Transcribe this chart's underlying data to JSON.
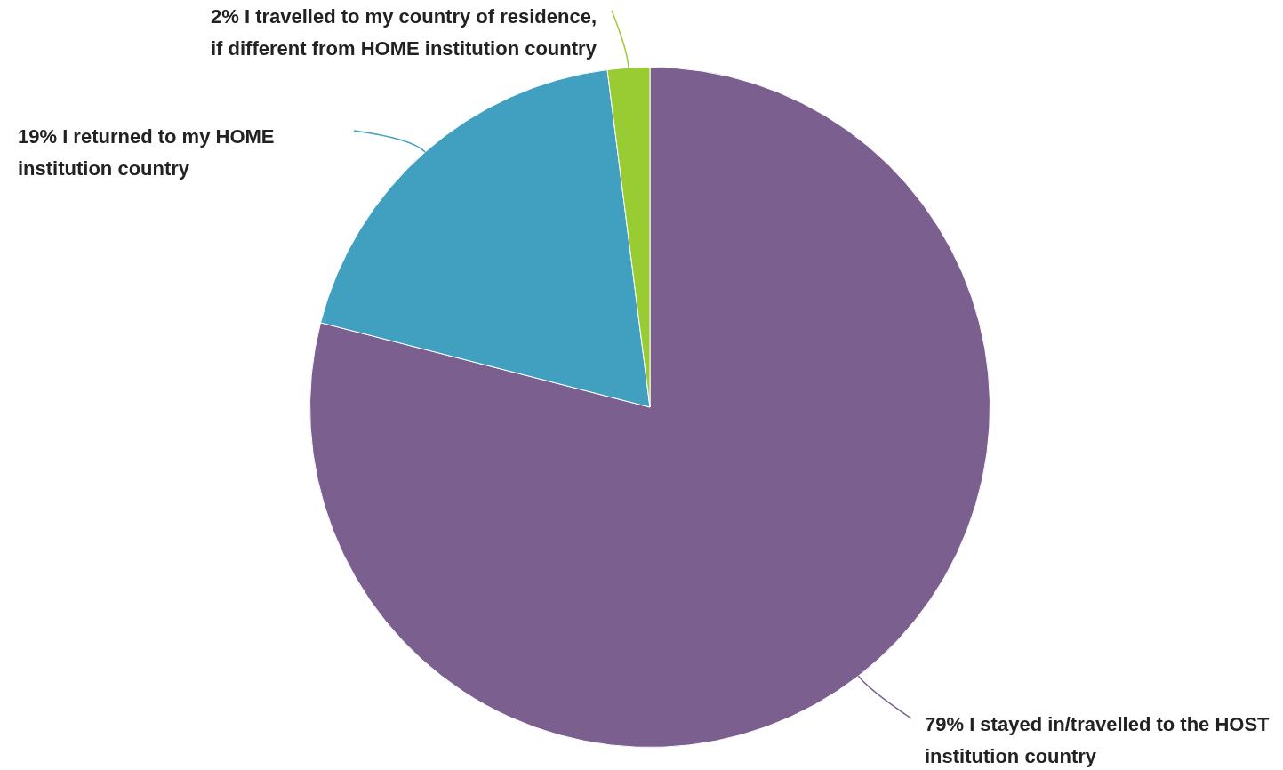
{
  "chart_data": {
    "type": "pie",
    "categories": [
      "I stayed in/travelled to the HOST institution country",
      "I returned to my HOME institution country",
      "I travelled to my country of residence, if different from HOME institution country"
    ],
    "values": [
      79,
      19,
      2
    ],
    "value_labels": [
      "79%",
      "19%",
      "2%"
    ],
    "colors": [
      "#7b5f8e",
      "#41a0c0",
      "#99cc33"
    ],
    "legend": false
  }
}
